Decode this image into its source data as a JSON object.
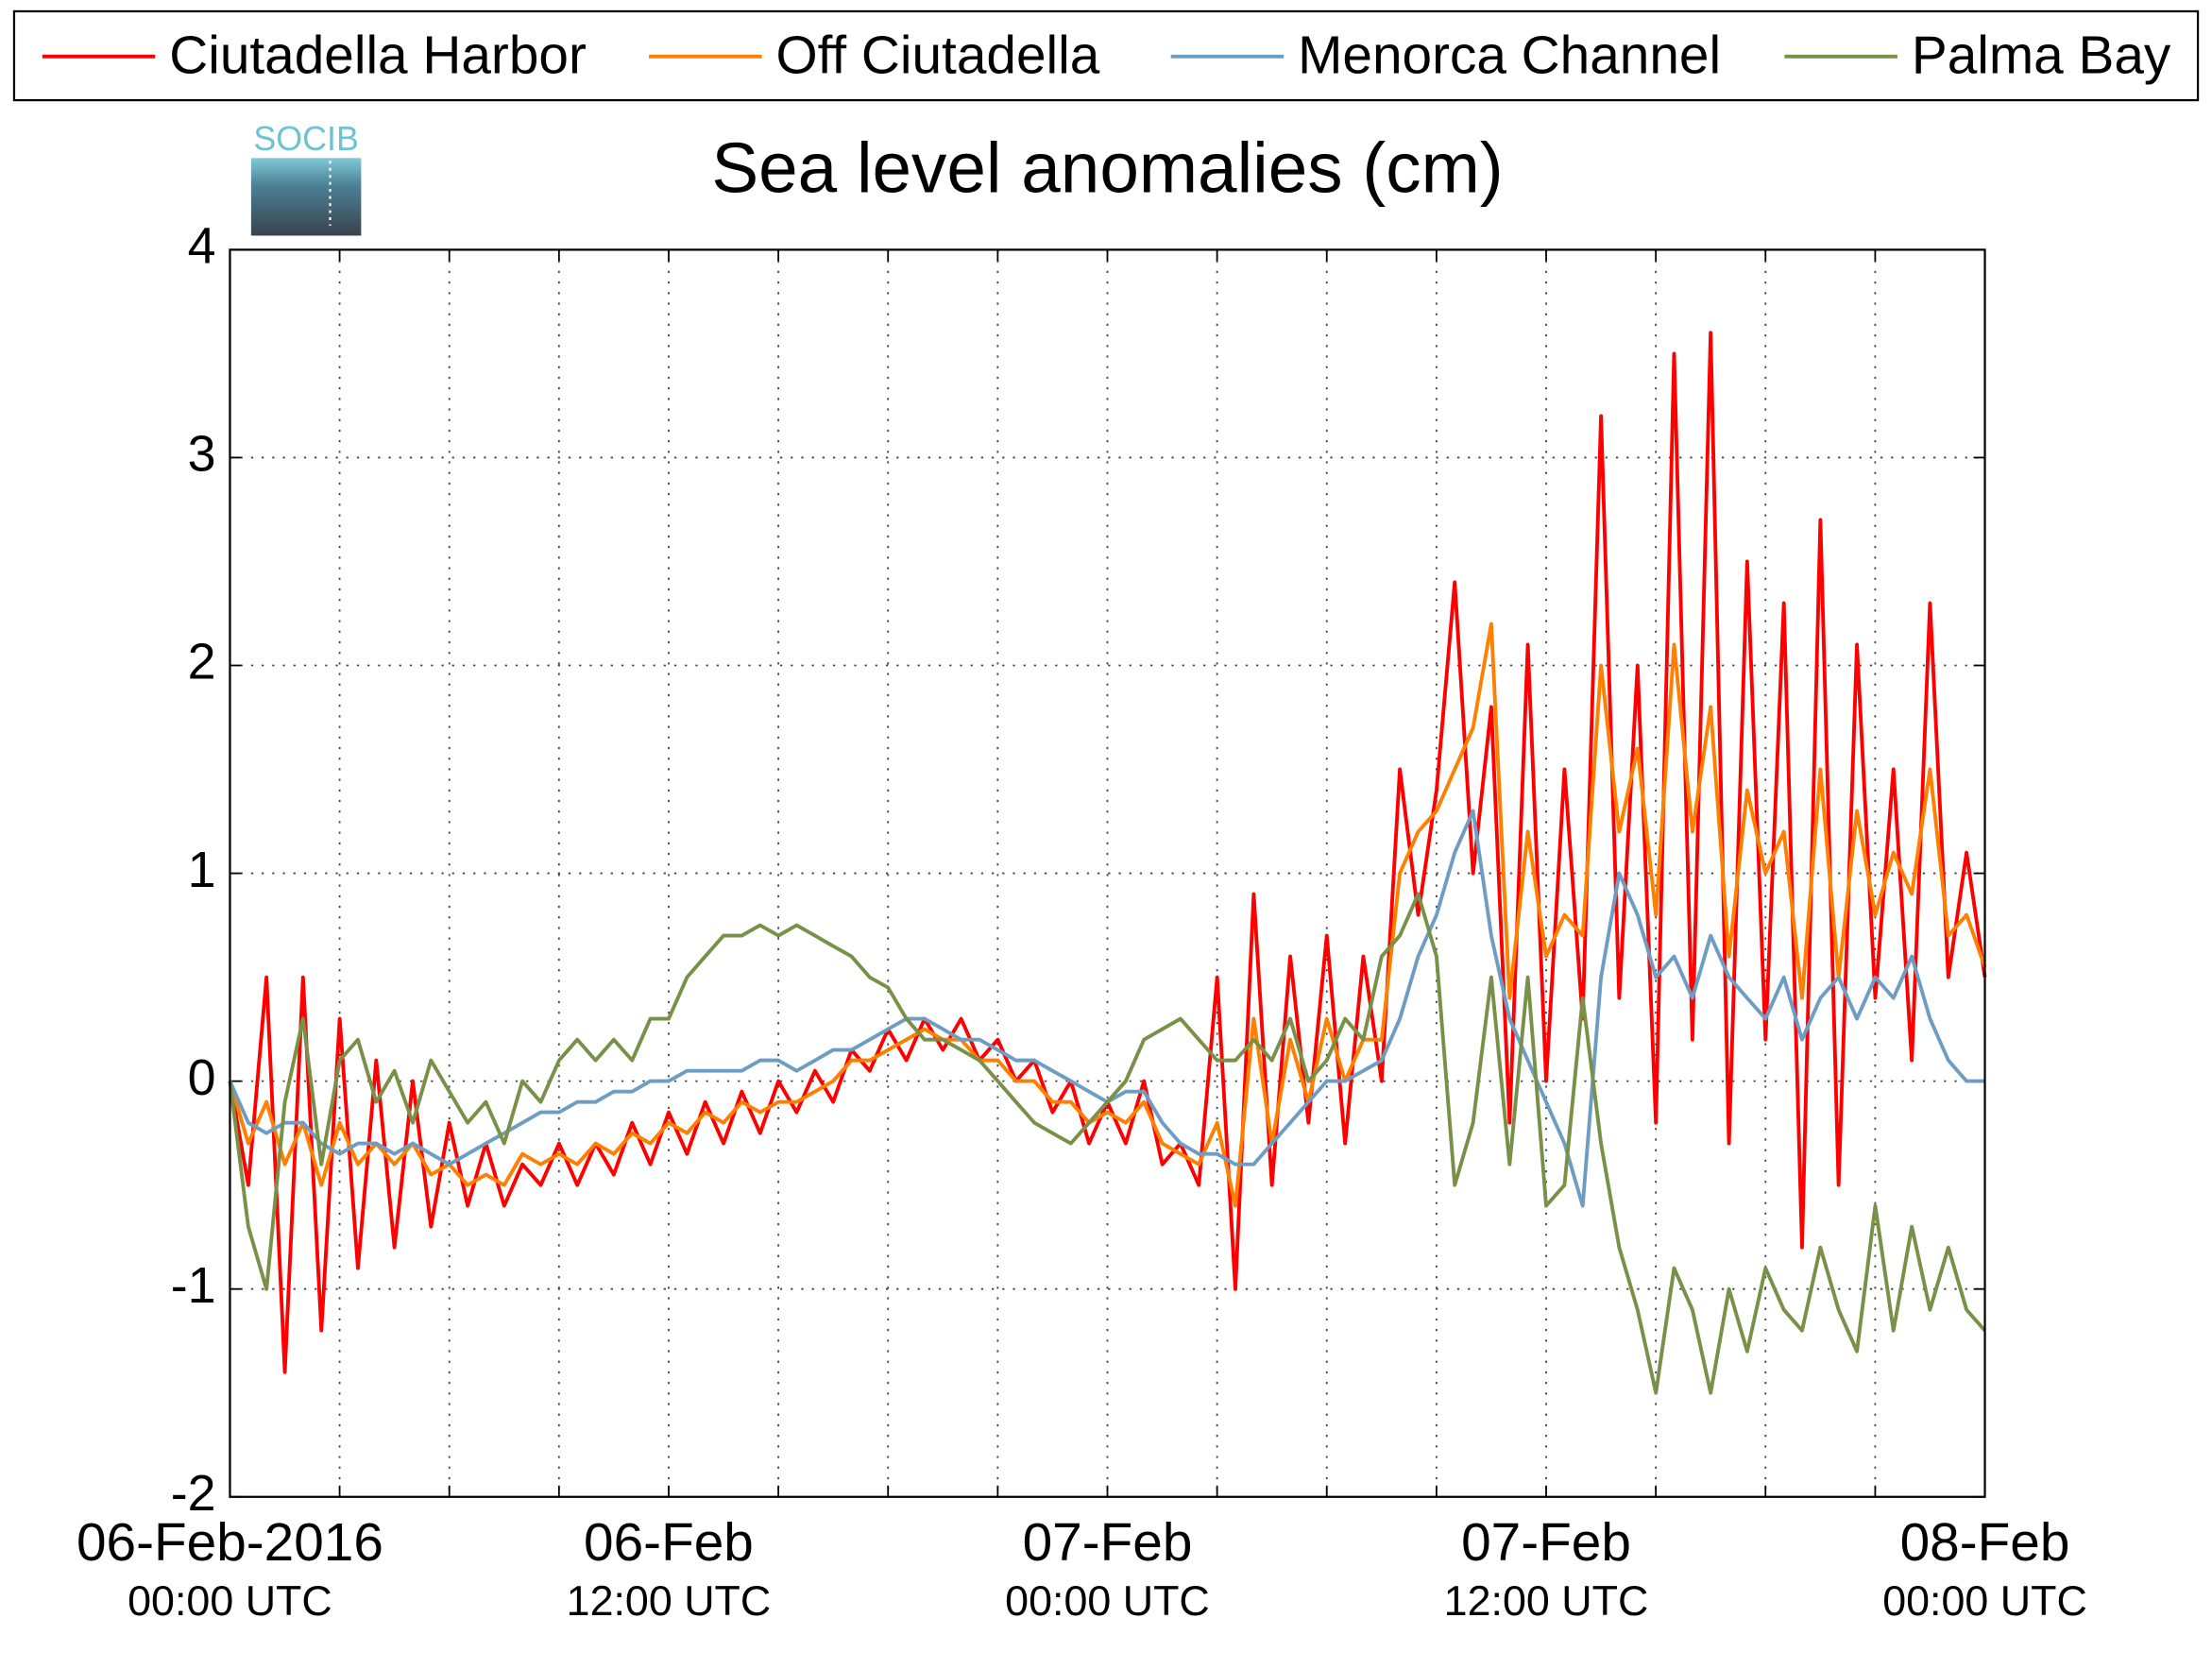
{
  "chart_data": {
    "type": "line",
    "title": "Sea level anomalies (cm)",
    "logo_text": "SOCIB",
    "x": [
      0,
      0.5,
      1,
      1.5,
      2,
      2.5,
      3,
      3.5,
      4,
      4.5,
      5,
      5.5,
      6,
      6.5,
      7,
      7.5,
      8,
      8.5,
      9,
      9.5,
      10,
      10.5,
      11,
      11.5,
      12,
      12.5,
      13,
      13.5,
      14,
      14.5,
      15,
      15.5,
      16,
      16.5,
      17,
      17.5,
      18,
      18.5,
      19,
      19.5,
      20,
      20.5,
      21,
      21.5,
      22,
      22.5,
      23,
      23.5,
      24,
      24.5,
      25,
      25.5,
      26,
      26.5,
      27,
      27.5,
      28,
      28.5,
      29,
      29.5,
      30,
      30.5,
      31,
      31.5,
      32,
      32.5,
      33,
      33.5,
      34,
      34.5,
      35,
      35.5,
      36,
      36.5,
      37,
      37.5,
      38,
      38.5,
      39,
      39.5,
      40,
      40.5,
      41,
      41.5,
      42,
      42.5,
      43,
      43.5,
      44,
      44.5,
      45,
      45.5,
      46,
      46.5,
      47,
      47.5,
      48
    ],
    "series": [
      {
        "name": "Ciutadella Harbor",
        "color": "#ff0000",
        "values": [
          0,
          -0.5,
          0.5,
          -1.4,
          0.5,
          -1.2,
          0.3,
          -0.9,
          0.1,
          -0.8,
          0,
          -0.7,
          -0.2,
          -0.6,
          -0.3,
          -0.6,
          -0.4,
          -0.5,
          -0.3,
          -0.5,
          -0.3,
          -0.45,
          -0.2,
          -0.4,
          -0.15,
          -0.35,
          -0.1,
          -0.3,
          -0.05,
          -0.25,
          0,
          -0.15,
          0.05,
          -0.1,
          0.15,
          0.05,
          0.25,
          0.1,
          0.3,
          0.15,
          0.3,
          0.1,
          0.2,
          0,
          0.1,
          -0.15,
          0,
          -0.3,
          -0.1,
          -0.3,
          0,
          -0.4,
          -0.3,
          -0.5,
          0.5,
          -1.0,
          0.9,
          -0.5,
          0.6,
          -0.2,
          0.7,
          -0.3,
          0.6,
          0,
          1.5,
          0.8,
          1.4,
          2.4,
          1.0,
          1.8,
          -0.2,
          2.1,
          0,
          1.5,
          0.3,
          3.2,
          0.4,
          2.0,
          -0.2,
          3.5,
          0.2,
          3.6,
          -0.3,
          2.5,
          0.2,
          2.3,
          -0.8,
          2.7,
          -0.5,
          2.1,
          0.4,
          1.5,
          0.1,
          2.3,
          0.5,
          1.1,
          0.5
        ]
      },
      {
        "name": "Off Ciutadella",
        "color": "#ff8000",
        "values": [
          0,
          -0.3,
          -0.1,
          -0.4,
          -0.2,
          -0.5,
          -0.2,
          -0.4,
          -0.3,
          -0.4,
          -0.3,
          -0.45,
          -0.4,
          -0.5,
          -0.45,
          -0.5,
          -0.35,
          -0.4,
          -0.35,
          -0.4,
          -0.3,
          -0.35,
          -0.25,
          -0.3,
          -0.2,
          -0.25,
          -0.15,
          -0.2,
          -0.1,
          -0.15,
          -0.1,
          -0.1,
          -0.05,
          0,
          0.1,
          0.1,
          0.15,
          0.2,
          0.25,
          0.2,
          0.2,
          0.1,
          0.1,
          0,
          0,
          -0.1,
          -0.1,
          -0.2,
          -0.15,
          -0.2,
          -0.1,
          -0.3,
          -0.35,
          -0.4,
          -0.2,
          -0.6,
          0.3,
          -0.3,
          0.2,
          -0.1,
          0.3,
          0,
          0.2,
          0.2,
          1.0,
          1.2,
          1.3,
          1.5,
          1.7,
          2.2,
          0.4,
          1.2,
          0.6,
          0.8,
          0.7,
          2.0,
          1.2,
          1.6,
          0.8,
          2.1,
          1.2,
          1.8,
          0.6,
          1.4,
          1.0,
          1.2,
          0.4,
          1.5,
          0.5,
          1.3,
          0.8,
          1.1,
          0.9,
          1.5,
          0.7,
          0.8,
          0.55
        ]
      },
      {
        "name": "Menorca Channel",
        "color": "#6e9dc4",
        "values": [
          0,
          -0.2,
          -0.25,
          -0.2,
          -0.2,
          -0.3,
          -0.35,
          -0.3,
          -0.3,
          -0.35,
          -0.3,
          -0.35,
          -0.4,
          -0.35,
          -0.3,
          -0.25,
          -0.2,
          -0.15,
          -0.15,
          -0.1,
          -0.1,
          -0.05,
          -0.05,
          0,
          0,
          0.05,
          0.05,
          0.05,
          0.05,
          0.1,
          0.1,
          0.05,
          0.1,
          0.15,
          0.15,
          0.2,
          0.25,
          0.3,
          0.3,
          0.25,
          0.2,
          0.2,
          0.15,
          0.1,
          0.1,
          0.05,
          0,
          -0.05,
          -0.1,
          -0.05,
          -0.05,
          -0.2,
          -0.3,
          -0.35,
          -0.35,
          -0.4,
          -0.4,
          -0.3,
          -0.2,
          -0.1,
          0,
          0,
          0.05,
          0.1,
          0.3,
          0.6,
          0.8,
          1.1,
          1.3,
          0.7,
          0.3,
          0.1,
          -0.1,
          -0.3,
          -0.6,
          0.5,
          1.0,
          0.8,
          0.5,
          0.6,
          0.4,
          0.7,
          0.5,
          0.4,
          0.3,
          0.5,
          0.2,
          0.4,
          0.5,
          0.3,
          0.5,
          0.4,
          0.6,
          0.3,
          0.1,
          0,
          0
        ]
      },
      {
        "name": "Palma Bay",
        "color": "#789048",
        "values": [
          0,
          -0.7,
          -1.0,
          -0.1,
          0.3,
          -0.4,
          0.1,
          0.2,
          -0.1,
          0.05,
          -0.2,
          0.1,
          -0.05,
          -0.2,
          -0.1,
          -0.3,
          0.0,
          -0.1,
          0.1,
          0.2,
          0.1,
          0.2,
          0.1,
          0.3,
          0.3,
          0.5,
          0.6,
          0.7,
          0.7,
          0.75,
          0.7,
          0.75,
          0.7,
          0.65,
          0.6,
          0.5,
          0.45,
          0.3,
          0.2,
          0.2,
          0.15,
          0.1,
          0.0,
          -0.1,
          -0.2,
          -0.25,
          -0.3,
          -0.2,
          -0.1,
          0.0,
          0.2,
          0.25,
          0.3,
          0.2,
          0.1,
          0.1,
          0.2,
          0.1,
          0.3,
          0.0,
          0.1,
          0.3,
          0.2,
          0.6,
          0.7,
          0.9,
          0.6,
          -0.5,
          -0.2,
          0.5,
          -0.4,
          0.5,
          -0.6,
          -0.5,
          0.4,
          -0.3,
          -0.8,
          -1.1,
          -1.5,
          -0.9,
          -1.1,
          -1.5,
          -1.0,
          -1.3,
          -0.9,
          -1.1,
          -1.2,
          -0.8,
          -1.1,
          -1.3,
          -0.6,
          -1.2,
          -0.7,
          -1.1,
          -0.8,
          -1.1,
          -1.2
        ]
      }
    ],
    "xlim": [
      0,
      48
    ],
    "xticks": [
      {
        "value": 0,
        "label": "06-Feb-2016",
        "sublabel": "00:00 UTC"
      },
      {
        "value": 12,
        "label": "06-Feb",
        "sublabel": "12:00 UTC"
      },
      {
        "value": 24,
        "label": "07-Feb",
        "sublabel": "00:00 UTC"
      },
      {
        "value": 36,
        "label": "07-Feb",
        "sublabel": "12:00 UTC"
      },
      {
        "value": 48,
        "label": "08-Feb",
        "sublabel": "00:00 UTC"
      }
    ],
    "xgrid": [
      3,
      6,
      9,
      15,
      18,
      21,
      27,
      30,
      33,
      39,
      42,
      45
    ],
    "ylim": [
      -2,
      4
    ],
    "yticks": [
      -2,
      -1,
      0,
      1,
      2,
      3,
      4
    ],
    "grid": true,
    "legend": "top"
  }
}
